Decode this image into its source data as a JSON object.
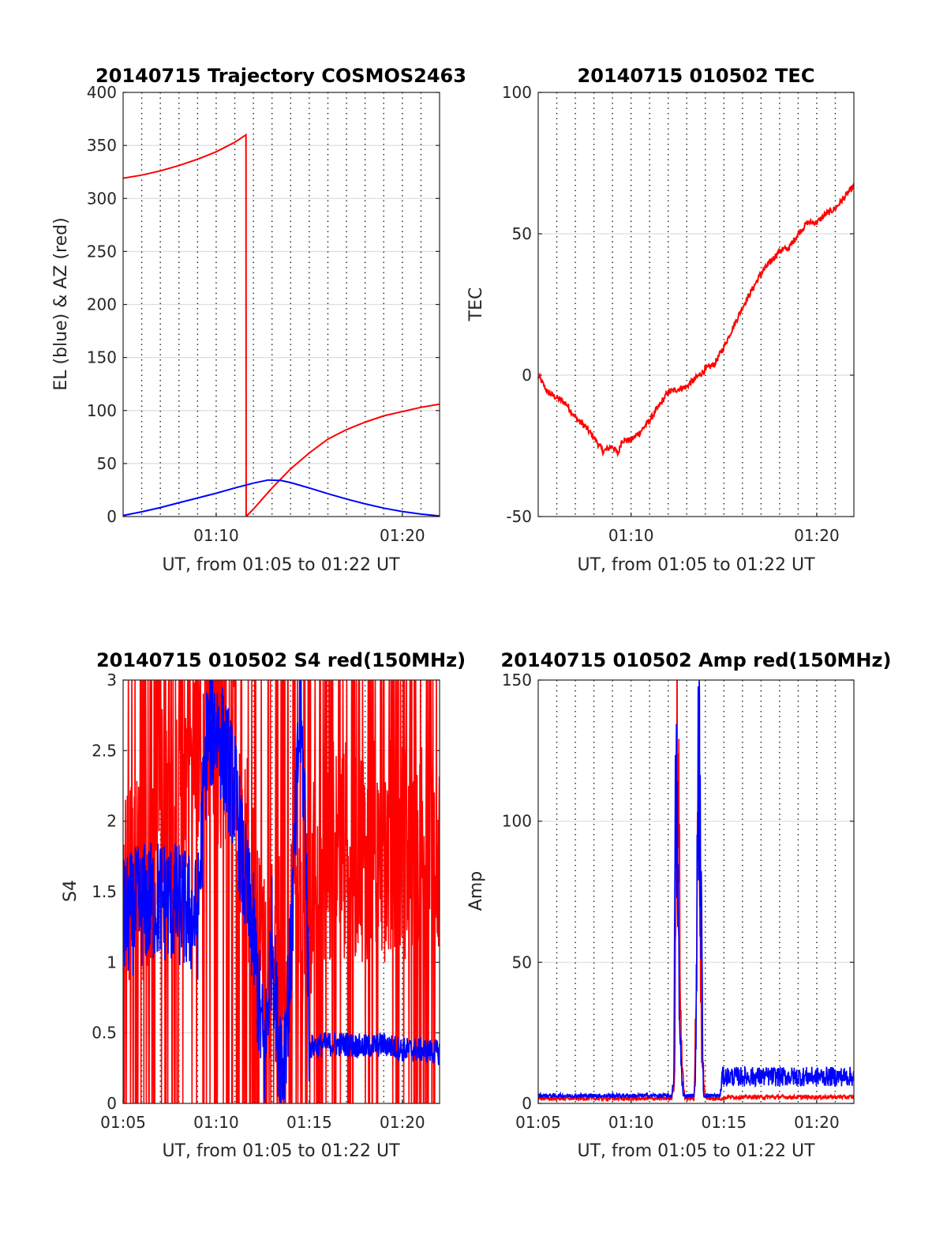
{
  "chart_data": [
    {
      "type": "line",
      "title": "20140715 Trajectory COSMOS2463",
      "xlabel": "UT, from 01:05 to 01:22 UT",
      "ylabel": "EL (blue) & AZ (red)",
      "xlim_min": [
        5,
        22
      ],
      "ylim": [
        0,
        400
      ],
      "yticks": [
        "0",
        "50",
        "100",
        "150",
        "200",
        "250",
        "300",
        "350",
        "400"
      ],
      "xticks": [
        {
          "t": 10,
          "label": "01:10"
        },
        {
          "t": 20,
          "label": "01:20"
        }
      ],
      "grid": "dotted vertical lines every 1 min, light horizontal lines",
      "series": [
        {
          "color": "#ff0000",
          "x": [
            5,
            6,
            7,
            8,
            9,
            10,
            11,
            11.6,
            11.61,
            12,
            13,
            14,
            15,
            16,
            17,
            18,
            19,
            20,
            21,
            22
          ],
          "values": [
            319,
            322,
            326,
            331,
            337,
            344,
            353,
            360,
            0,
            7,
            27,
            45,
            60,
            73,
            82,
            89,
            95,
            99,
            103,
            106
          ]
        },
        {
          "color": "#0000ff",
          "x": [
            5,
            6,
            7,
            8,
            9,
            10,
            11,
            12,
            12.8,
            13.5,
            14,
            15,
            16,
            17,
            18,
            19,
            20,
            21,
            22
          ],
          "values": [
            1,
            4.5,
            8.5,
            13,
            17.5,
            22,
            27,
            31.5,
            34.5,
            34,
            32,
            27,
            21.5,
            16.5,
            12,
            8,
            4.8,
            2.3,
            0.5
          ]
        }
      ]
    },
    {
      "type": "line",
      "title": "20140715 010502 TEC",
      "xlabel": "UT, from 01:05 to 01:22 UT",
      "ylabel": "TEC",
      "xlim_min": [
        5,
        22
      ],
      "ylim": [
        -50,
        100
      ],
      "yticks": [
        "-50",
        "0",
        "50",
        "100"
      ],
      "xticks": [
        {
          "t": 10,
          "label": "01:10"
        },
        {
          "t": 20,
          "label": "01:20"
        }
      ],
      "series": [
        {
          "color": "#ff0000",
          "x": [
            5,
            5.5,
            6,
            6.5,
            7,
            7.5,
            8,
            8.5,
            9,
            9.3,
            9.5,
            10,
            10.5,
            11,
            11.5,
            12,
            12.5,
            13,
            13.5,
            14,
            14.5,
            15,
            15.5,
            16,
            16.5,
            17,
            17.5,
            18,
            18.5,
            19,
            19.5,
            20,
            20.5,
            21,
            21.5,
            22
          ],
          "values": [
            0,
            -6,
            -8,
            -10,
            -15,
            -18,
            -22,
            -27,
            -25,
            -28,
            -23,
            -23,
            -20,
            -16,
            -11,
            -6,
            -5,
            -4,
            -1,
            2,
            4,
            10,
            17,
            24,
            30,
            36,
            40,
            44,
            45,
            50,
            54,
            54,
            57,
            59,
            63,
            67
          ]
        }
      ]
    },
    {
      "type": "line",
      "title": "20140715 010502 S4 red(150MHz)",
      "xlabel": "UT, from 01:05 to 01:22 UT",
      "ylabel": "S4",
      "xlim_min": [
        5,
        22
      ],
      "ylim": [
        0,
        3
      ],
      "yticks": [
        "0",
        "0.5",
        "1",
        "1.5",
        "2",
        "2.5",
        "3"
      ],
      "xticks": [
        {
          "t": 5,
          "label": "01:05"
        },
        {
          "t": 10,
          "label": "01:10"
        },
        {
          "t": 15,
          "label": "01:15"
        },
        {
          "t": 20,
          "label": "01:20"
        }
      ],
      "series": [
        {
          "color": "#ff0000",
          "note_values": "noisy",
          "x": [
            5,
            6,
            7,
            8,
            9,
            10,
            11,
            12,
            13,
            13.5,
            14,
            14.5,
            15,
            16,
            17,
            18,
            19,
            20,
            21,
            22
          ],
          "values": [
            1.5,
            1.6,
            2.0,
            2.3,
            2.5,
            2.6,
            2.5,
            1.3,
            0.9,
            1.0,
            1.2,
            1.3,
            1.5,
            1.8,
            1.8,
            1.8,
            1.8,
            1.8,
            1.8,
            1.8
          ]
        },
        {
          "color": "#0000ff",
          "x": [
            5,
            6,
            7,
            8,
            9,
            9.5,
            10,
            11,
            11.5,
            12,
            12.3,
            12.6,
            13,
            13.3,
            13.6,
            14,
            14.5,
            14.8,
            15,
            16,
            17,
            18,
            19,
            20,
            21,
            22
          ],
          "values": [
            1.3,
            1.4,
            1.45,
            1.4,
            1.3,
            2.6,
            2.7,
            2.2,
            1.6,
            1.2,
            0.7,
            0.3,
            1.2,
            0.5,
            0.3,
            1.0,
            2.8,
            2.0,
            0.4,
            0.42,
            0.42,
            0.4,
            0.42,
            0.38,
            0.38,
            0.36
          ]
        }
      ]
    },
    {
      "type": "line",
      "title": "20140715 010502 Amp red(150MHz)",
      "xlabel": "UT, from 01:05 to 01:22 UT",
      "ylabel": "Amp",
      "xlim_min": [
        5,
        22
      ],
      "ylim": [
        0,
        150
      ],
      "yticks": [
        "0",
        "50",
        "100",
        "150"
      ],
      "xticks": [
        {
          "t": 5,
          "label": "01:05"
        },
        {
          "t": 10,
          "label": "01:10"
        },
        {
          "t": 15,
          "label": "01:15"
        },
        {
          "t": 20,
          "label": "01:20"
        }
      ],
      "series": [
        {
          "color": "#ff0000",
          "x": [
            5,
            12.2,
            12.35,
            12.45,
            12.55,
            12.7,
            12.9,
            13.4,
            13.5,
            13.65,
            13.8,
            14,
            14.9,
            15.2,
            22
          ],
          "values": [
            1,
            1,
            10,
            143,
            120,
            20,
            1,
            1,
            40,
            125,
            22,
            1,
            1,
            1.5,
            1.5
          ]
        },
        {
          "color": "#0000ff",
          "x": [
            5,
            12.2,
            12.3,
            12.4,
            12.5,
            12.6,
            12.8,
            13.4,
            13.5,
            13.6,
            13.7,
            13.9,
            14.8,
            14.9,
            22
          ],
          "values": [
            2,
            2,
            10,
            113,
            100,
            30,
            2,
            2,
            20,
            132,
            115,
            2,
            2,
            10,
            10
          ]
        }
      ]
    }
  ]
}
